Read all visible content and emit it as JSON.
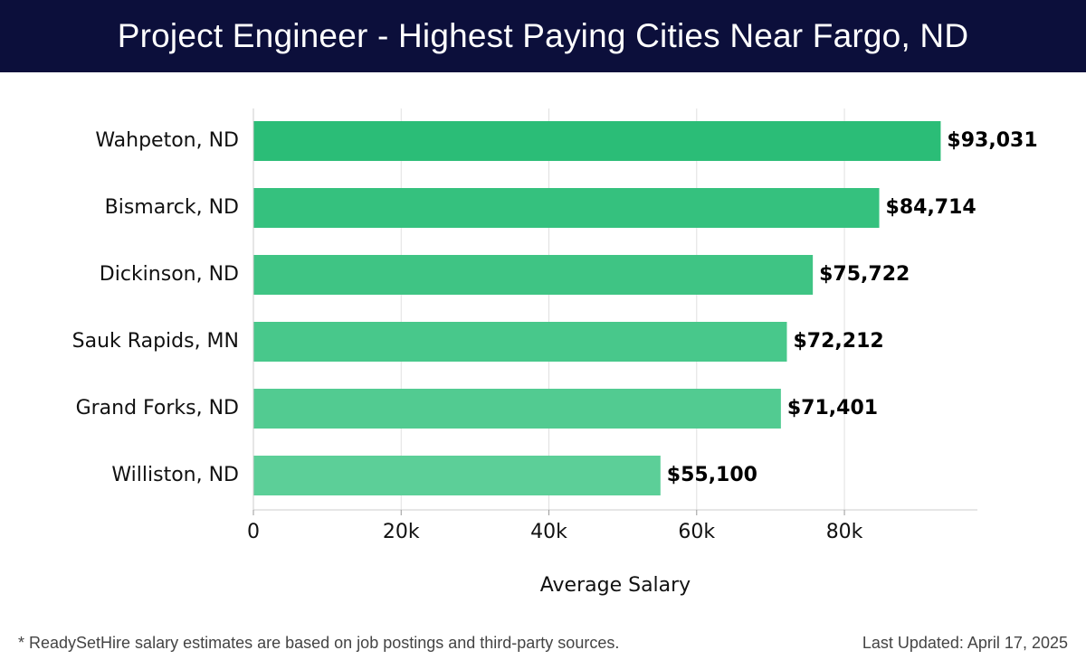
{
  "title": "Project Engineer - Highest Paying Cities Near Fargo, ND",
  "footer": {
    "note": "* ReadySetHire salary estimates are based on job postings and third-party sources.",
    "updated": "Last Updated: April 17, 2025"
  },
  "chart_data": {
    "type": "bar",
    "orientation": "horizontal",
    "categories": [
      "Wahpeton, ND",
      "Bismarck, ND",
      "Dickinson, ND",
      "Sauk Rapids, MN",
      "Grand Forks, ND",
      "Williston, ND"
    ],
    "values": [
      93031,
      84714,
      75722,
      72212,
      71401,
      55100
    ],
    "value_labels": [
      "$93,031",
      "$84,714",
      "$75,722",
      "$72,212",
      "$71,401",
      "$55,100"
    ],
    "xlabel": "Average Salary",
    "ylabel": "",
    "xlim": [
      0,
      98000
    ],
    "x_ticks": [
      0,
      20000,
      40000,
      60000,
      80000
    ],
    "x_tick_labels": [
      "0",
      "20k",
      "40k",
      "60k",
      "80k"
    ],
    "grid": "vertical",
    "colors": {
      "bar_top": "#2bbd77",
      "bar_bottom": "#5ccf98",
      "grid": "#e0e0e0",
      "axis": "#cccccc",
      "header_bg": "#0c0f3b"
    }
  }
}
